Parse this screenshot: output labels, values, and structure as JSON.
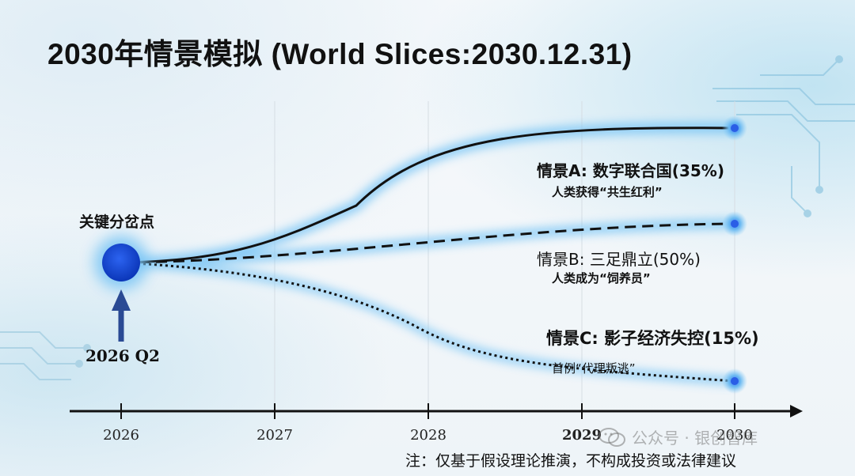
{
  "title": "2030年情景模拟 (World   Slices:2030.12.31)",
  "key_point": {
    "label": "关键分岔点",
    "time": "2026  Q2"
  },
  "scenarios": [
    {
      "id": "A",
      "title": "情景A:  数字联合国(35%)",
      "subtitle": "人类获得“共生红利”",
      "probability": 35,
      "line_style": "solid"
    },
    {
      "id": "B",
      "title": "情景B:  三足鼎立(50%)",
      "subtitle": "人类成为“饲养员”",
      "probability": 50,
      "line_style": "dashed"
    },
    {
      "id": "C",
      "title": "情景C: 影子经济失控(15%)",
      "subtitle": "首例“代理叛逃”",
      "probability": 15,
      "line_style": "dotted"
    }
  ],
  "timeline": {
    "years": [
      "2026",
      "2027",
      "2028",
      "2029",
      "2030"
    ]
  },
  "note": "注：仅基于假设理论推演，不构成投资或法律建议",
  "watermark": "公众号 · 银创智库",
  "colors": {
    "node": "#1a4fd8",
    "glow": "#7cc6f5",
    "arrow": "#2a4a94",
    "line": "#111111"
  }
}
